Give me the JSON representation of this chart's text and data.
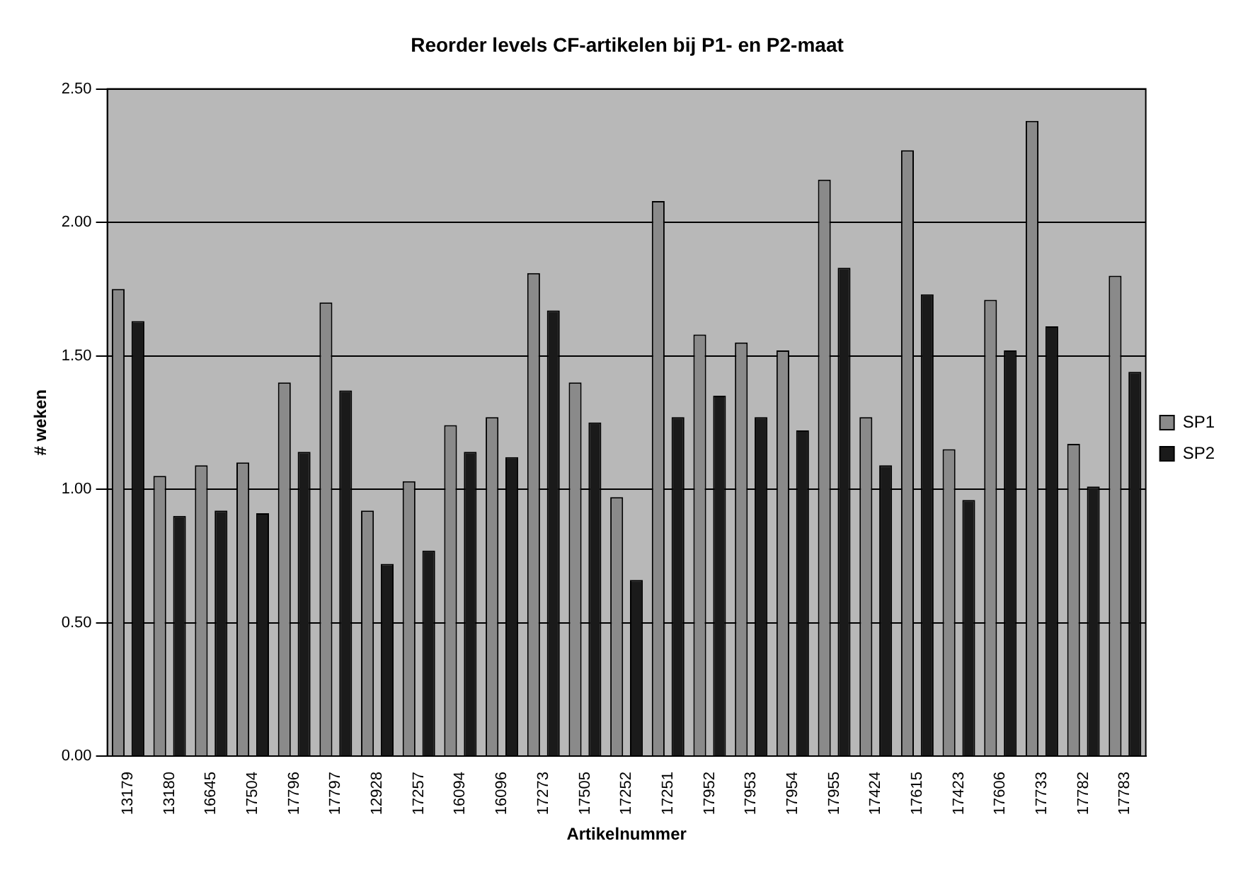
{
  "chart_data": {
    "type": "bar",
    "title": "Reorder levels CF-artikelen bij P1- en P2-maat",
    "xlabel": "Artikelnummer",
    "ylabel": "# weken",
    "categories": [
      "13179",
      "13180",
      "16645",
      "17504",
      "17796",
      "17797",
      "12928",
      "17257",
      "16094",
      "16096",
      "17273",
      "17505",
      "17252",
      "17251",
      "17952",
      "17953",
      "17954",
      "17955",
      "17424",
      "17615",
      "17423",
      "17606",
      "17733",
      "17782",
      "17783"
    ],
    "series": [
      {
        "name": "SP1",
        "color": "#8a8a8a",
        "values": [
          1.75,
          1.05,
          1.09,
          1.1,
          1.4,
          1.7,
          0.92,
          1.03,
          1.24,
          1.27,
          1.81,
          1.4,
          0.97,
          2.08,
          1.58,
          1.55,
          1.52,
          2.16,
          1.27,
          2.27,
          1.15,
          1.71,
          2.38,
          1.17,
          1.8
        ]
      },
      {
        "name": "SP2",
        "color": "#1a1a1a",
        "values": [
          1.63,
          0.9,
          0.92,
          0.91,
          1.14,
          1.37,
          0.72,
          0.77,
          1.14,
          1.12,
          1.67,
          1.25,
          0.66,
          1.27,
          1.35,
          1.27,
          1.22,
          1.83,
          1.09,
          1.73,
          0.96,
          1.52,
          1.61,
          1.01,
          1.44
        ]
      }
    ],
    "ylim": [
      0,
      2.5
    ],
    "yticks": [
      {
        "value": 0,
        "label": "0.00"
      },
      {
        "value": 0.5,
        "label": "0.50"
      },
      {
        "value": 1,
        "label": "1.00"
      },
      {
        "value": 1.5,
        "label": "1.50"
      },
      {
        "value": 2,
        "label": "2.00"
      },
      {
        "value": 2.5,
        "label": "2.50"
      }
    ],
    "grid": "y",
    "legend": "right"
  }
}
